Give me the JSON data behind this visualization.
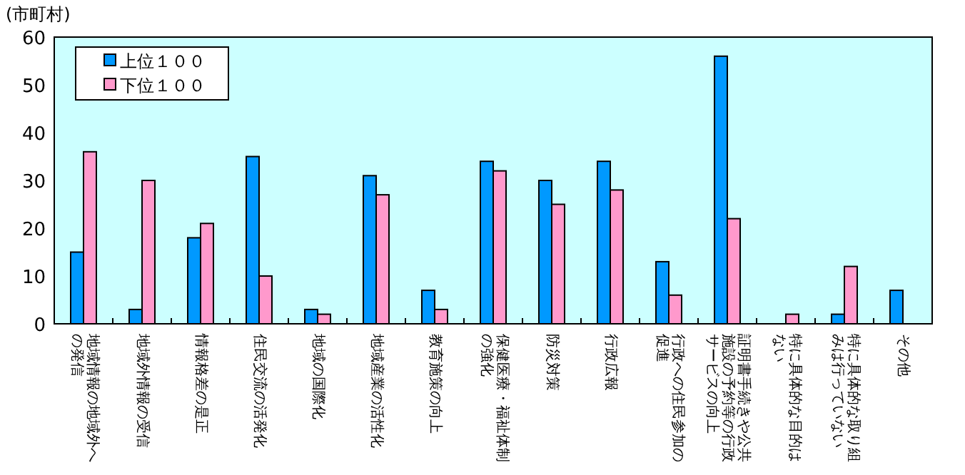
{
  "chart_data": {
    "type": "bar",
    "ylabel": "(市町村)",
    "categories": [
      "地域情報の地域外への発信",
      "地域外情報の受信",
      "情報格差の是正",
      "住民交流の活発化",
      "地域の国際化",
      "地域産業の活性化",
      "教育施策の向上",
      "保健医療・福祉体制の強化",
      "防災対策",
      "行政広報",
      "行政への住民参加の促進",
      "証明書手続きや公共施設の予約等の行政サービスの向上",
      "特に具体的な目的はない",
      "特に具体的な取り組みは行っていない",
      "その他"
    ],
    "series": [
      {
        "name": "上位１００",
        "color": "#0099ff",
        "values": [
          15,
          3,
          18,
          35,
          3,
          31,
          7,
          34,
          30,
          34,
          13,
          56,
          0,
          2,
          7
        ]
      },
      {
        "name": "下位１００",
        "color": "#ff99cc",
        "values": [
          36,
          30,
          21,
          10,
          2,
          27,
          3,
          32,
          25,
          28,
          6,
          22,
          2,
          12,
          0
        ]
      }
    ],
    "ylim": [
      0,
      60
    ],
    "yticks": [
      0,
      10,
      20,
      30,
      40,
      50,
      60
    ],
    "legend": "top left"
  }
}
